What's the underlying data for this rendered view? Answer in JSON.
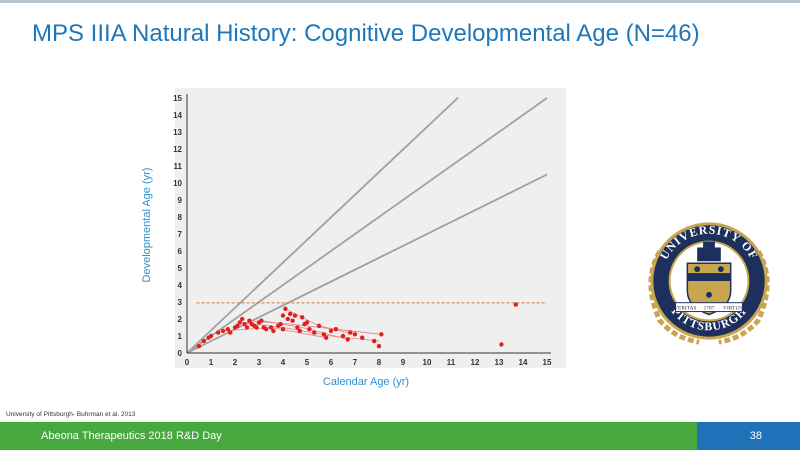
{
  "slide": {
    "title": "MPS IIIA Natural History: Cognitive Developmental Age (N=46)",
    "source": "University of Pittsburgh- Buhrman et al. 2013",
    "footer_text": "Abeona Therapeutics 2018 R&D Day",
    "page_number": "38"
  },
  "colors": {
    "title": "#1f77b8",
    "axis_label": "#2f8fd0",
    "footer_green": "#47a83f",
    "footer_blue": "#1f72b8",
    "points": "#e02020",
    "reference_lines": "#a0a0a0",
    "threshold": "#e07030",
    "seal_navy": "#1d2f5c",
    "seal_gold": "#c9a54e"
  },
  "logo": {
    "name": "university-of-pittsburgh-seal",
    "text_top": "UNIVERSITY OF",
    "text_bottom": "PITTSBURGH",
    "banner_left": "VERITAS",
    "banner_mid": "1787",
    "banner_right": "VIRTUS"
  },
  "chart_data": {
    "type": "scatter",
    "xlabel": "Calendar Age (yr)",
    "ylabel": "Developmental Age (yr)",
    "xlim": [
      0,
      15
    ],
    "ylim": [
      0,
      15
    ],
    "xticks": [
      0,
      1,
      2,
      3,
      4,
      5,
      6,
      7,
      8,
      9,
      10,
      11,
      12,
      13,
      14,
      15
    ],
    "yticks": [
      0,
      1,
      2,
      3,
      4,
      5,
      6,
      7,
      8,
      9,
      10,
      11,
      12,
      13,
      14,
      15
    ],
    "grid": false,
    "reference_lines": [
      {
        "slope": 1.33,
        "x_end": 11.3
      },
      {
        "slope": 1.0,
        "x_end": 15
      },
      {
        "slope": 0.7,
        "x_end": 15
      }
    ],
    "threshold_y": 2.95,
    "points": [
      [
        0.5,
        0.4
      ],
      [
        0.7,
        0.7
      ],
      [
        0.9,
        0.9
      ],
      [
        1.0,
        1.0
      ],
      [
        1.3,
        1.2
      ],
      [
        1.5,
        1.3
      ],
      [
        1.7,
        1.4
      ],
      [
        1.8,
        1.2
      ],
      [
        2.0,
        1.5
      ],
      [
        2.1,
        1.6
      ],
      [
        2.2,
        1.8
      ],
      [
        2.3,
        2.0
      ],
      [
        2.4,
        1.7
      ],
      [
        2.5,
        1.5
      ],
      [
        2.6,
        1.9
      ],
      [
        2.7,
        1.7
      ],
      [
        2.8,
        1.6
      ],
      [
        2.9,
        1.5
      ],
      [
        3.0,
        1.8
      ],
      [
        3.1,
        1.9
      ],
      [
        3.2,
        1.5
      ],
      [
        3.3,
        1.4
      ],
      [
        3.5,
        1.5
      ],
      [
        3.6,
        1.3
      ],
      [
        3.8,
        1.6
      ],
      [
        3.9,
        1.7
      ],
      [
        4.0,
        1.4
      ],
      [
        4.0,
        2.2
      ],
      [
        4.1,
        2.6
      ],
      [
        4.2,
        2.0
      ],
      [
        4.3,
        2.3
      ],
      [
        4.4,
        1.9
      ],
      [
        4.5,
        2.2
      ],
      [
        4.6,
        1.5
      ],
      [
        4.7,
        1.3
      ],
      [
        4.8,
        2.1
      ],
      [
        4.9,
        1.7
      ],
      [
        5.0,
        1.8
      ],
      [
        5.1,
        1.4
      ],
      [
        5.3,
        1.2
      ],
      [
        5.5,
        1.6
      ],
      [
        5.7,
        1.1
      ],
      [
        5.8,
        0.9
      ],
      [
        6.0,
        1.3
      ],
      [
        6.2,
        1.4
      ],
      [
        6.5,
        1.0
      ],
      [
        6.7,
        0.8
      ],
      [
        6.8,
        1.2
      ],
      [
        7.0,
        1.1
      ],
      [
        7.3,
        0.9
      ],
      [
        7.8,
        0.7
      ],
      [
        8.0,
        0.4
      ],
      [
        8.1,
        1.1
      ],
      [
        13.1,
        0.5
      ],
      [
        13.7,
        2.85
      ]
    ],
    "trajectories": [
      [
        [
          2.2,
          1.8
        ],
        [
          4.0,
          1.5
        ],
        [
          6.0,
          1.0
        ],
        [
          8.0,
          0.7
        ]
      ],
      [
        [
          2.6,
          1.9
        ],
        [
          4.3,
          1.7
        ],
        [
          6.2,
          1.4
        ],
        [
          8.1,
          1.1
        ]
      ],
      [
        [
          4.1,
          2.6
        ],
        [
          5.5,
          1.6
        ],
        [
          7.0,
          1.1
        ]
      ],
      [
        [
          3.1,
          1.9
        ],
        [
          4.8,
          1.5
        ],
        [
          6.7,
          0.8
        ]
      ],
      [
        [
          1.5,
          1.3
        ],
        [
          3.5,
          1.5
        ],
        [
          5.8,
          0.9
        ]
      ]
    ]
  }
}
